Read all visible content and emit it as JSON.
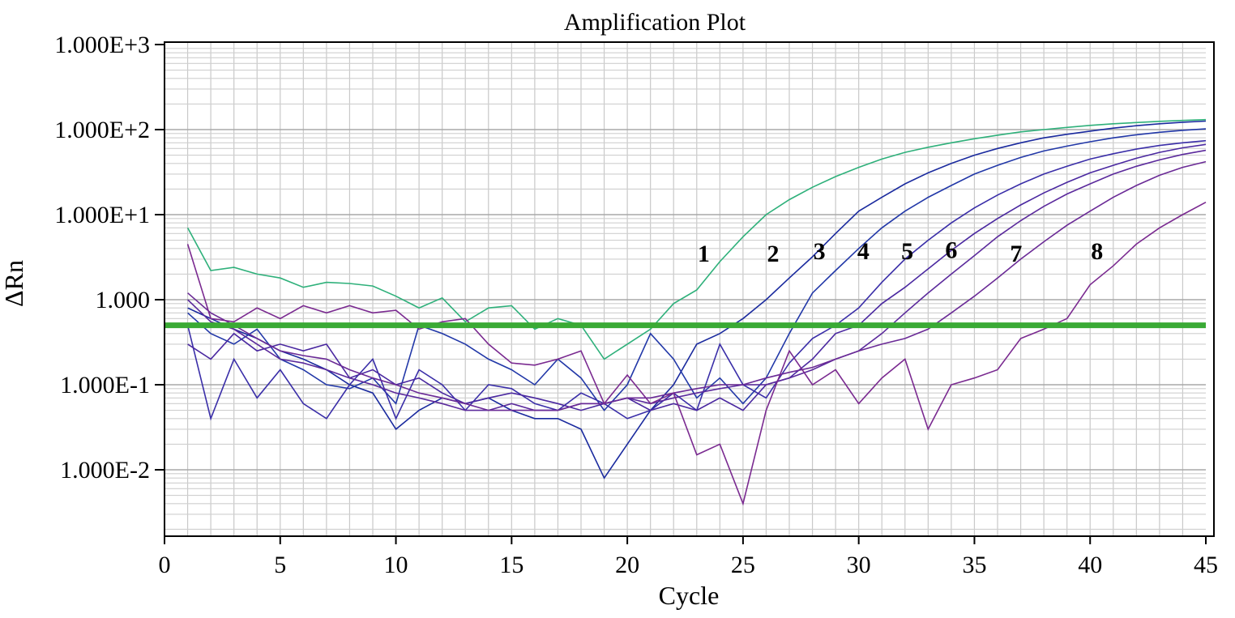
{
  "chart_data": {
    "type": "line",
    "title": "Amplification Plot",
    "xlabel": "Cycle",
    "ylabel": "ΔRn",
    "yscale": "log",
    "xlim": [
      0,
      45
    ],
    "ylim": [
      0.001,
      1000
    ],
    "grid": true,
    "legend": "none",
    "x_ticks": [
      0,
      5,
      10,
      15,
      20,
      25,
      30,
      35,
      40,
      45
    ],
    "x_tick_labels": [
      "0",
      "5",
      "10",
      "15",
      "20",
      "25",
      "30",
      "35",
      "40",
      "45"
    ],
    "y_ticks": [
      1000,
      100,
      10,
      1,
      0.1,
      0.01
    ],
    "y_tick_labels": [
      "1.000E+3",
      "1.000E+2",
      "1.000E+1",
      "1.000",
      "1.000E-1",
      "1.000E-2"
    ],
    "threshold": {
      "value": 0.5,
      "color": "#3aaa35"
    },
    "curve_labels": [
      {
        "text": "1",
        "x": 23.3,
        "y": 2.8
      },
      {
        "text": "2",
        "x": 26.3,
        "y": 2.8
      },
      {
        "text": "3",
        "x": 28.3,
        "y": 3.0
      },
      {
        "text": "4",
        "x": 30.2,
        "y": 3.0
      },
      {
        "text": "5",
        "x": 32.1,
        "y": 3.0
      },
      {
        "text": "6",
        "x": 34.0,
        "y": 3.1
      },
      {
        "text": "7",
        "x": 36.8,
        "y": 2.8
      },
      {
        "text": "8",
        "x": 40.3,
        "y": 3.0
      }
    ],
    "series": [
      {
        "color": "#2eb07a",
        "x": [
          1,
          2,
          3,
          4,
          5,
          6,
          7,
          8,
          9,
          10,
          11,
          12,
          13,
          14,
          15,
          16,
          17,
          18,
          19,
          20,
          21,
          22,
          23,
          24,
          25,
          26,
          27,
          28,
          29,
          30,
          31,
          32,
          33,
          34,
          35,
          36,
          37,
          38,
          39,
          40,
          41,
          42,
          43,
          44,
          45
        ],
        "y": [
          7,
          2.2,
          2.4,
          2,
          1.8,
          1.4,
          1.6,
          1.55,
          1.45,
          1.1,
          0.8,
          1.05,
          0.55,
          0.8,
          0.85,
          0.45,
          0.6,
          0.5,
          0.2,
          0.3,
          0.45,
          0.9,
          1.3,
          2.8,
          5.5,
          10,
          15,
          21,
          28,
          36,
          45,
          54,
          62,
          70,
          78,
          86,
          94,
          100,
          106,
          112,
          117,
          121,
          125,
          128,
          131
        ]
      },
      {
        "color": "#1a2a9e",
        "x": [
          1,
          2,
          3,
          4,
          5,
          6,
          7,
          8,
          9,
          10,
          11,
          12,
          13,
          14,
          15,
          16,
          17,
          18,
          19,
          20,
          21,
          22,
          23,
          24,
          25,
          26,
          27,
          28,
          29,
          30,
          31,
          32,
          33,
          34,
          35,
          36,
          37,
          38,
          39,
          40,
          41,
          42,
          43,
          44,
          45
        ],
        "y": [
          0.8,
          0.6,
          0.45,
          0.35,
          0.25,
          0.2,
          0.15,
          0.1,
          0.08,
          0.03,
          0.05,
          0.07,
          0.06,
          0.07,
          0.05,
          0.04,
          0.04,
          0.03,
          0.008,
          0.02,
          0.05,
          0.1,
          0.3,
          0.4,
          0.6,
          1,
          1.8,
          3.2,
          6,
          11,
          16,
          23,
          31,
          40,
          50,
          60,
          70,
          80,
          88,
          96,
          104,
          111,
          117,
          122,
          126
        ]
      },
      {
        "color": "#2238a8",
        "x": [
          1,
          2,
          3,
          4,
          5,
          6,
          7,
          8,
          9,
          10,
          11,
          12,
          13,
          14,
          15,
          16,
          17,
          18,
          19,
          20,
          21,
          22,
          23,
          24,
          25,
          26,
          27,
          28,
          29,
          30,
          31,
          32,
          33,
          34,
          35,
          36,
          37,
          38,
          39,
          40,
          41,
          42,
          43,
          44,
          45
        ],
        "y": [
          0.7,
          0.4,
          0.3,
          0.45,
          0.2,
          0.15,
          0.1,
          0.09,
          0.12,
          0.06,
          0.5,
          0.4,
          0.3,
          0.2,
          0.15,
          0.1,
          0.2,
          0.12,
          0.05,
          0.1,
          0.4,
          0.2,
          0.07,
          0.12,
          0.06,
          0.12,
          0.4,
          1.2,
          2.2,
          4,
          7,
          11,
          16,
          22,
          30,
          38,
          47,
          56,
          64,
          72,
          80,
          87,
          93,
          98,
          102
        ]
      },
      {
        "color": "#3a2ea8",
        "x": [
          1,
          2,
          3,
          4,
          5,
          6,
          7,
          8,
          9,
          10,
          11,
          12,
          13,
          14,
          15,
          16,
          17,
          18,
          19,
          20,
          21,
          22,
          23,
          24,
          25,
          26,
          27,
          28,
          29,
          30,
          31,
          32,
          33,
          34,
          35,
          36,
          37,
          38,
          39,
          40,
          41,
          42,
          43,
          44,
          45
        ],
        "y": [
          0.5,
          0.04,
          0.2,
          0.07,
          0.15,
          0.06,
          0.04,
          0.1,
          0.2,
          0.04,
          0.15,
          0.1,
          0.05,
          0.1,
          0.09,
          0.06,
          0.05,
          0.08,
          0.06,
          0.04,
          0.05,
          0.08,
          0.05,
          0.3,
          0.1,
          0.07,
          0.18,
          0.35,
          0.5,
          0.8,
          1.6,
          3,
          5,
          8,
          12,
          17,
          23,
          30,
          37,
          45,
          52,
          59,
          65,
          70,
          74
        ]
      },
      {
        "color": "#4a28a0",
        "x": [
          1,
          2,
          3,
          4,
          5,
          6,
          7,
          8,
          9,
          10,
          11,
          12,
          13,
          14,
          15,
          16,
          17,
          18,
          19,
          20,
          21,
          22,
          23,
          24,
          25,
          26,
          27,
          28,
          29,
          30,
          31,
          32,
          33,
          34,
          35,
          36,
          37,
          38,
          39,
          40,
          41,
          42,
          43,
          44,
          45
        ],
        "y": [
          0.3,
          0.2,
          0.4,
          0.25,
          0.3,
          0.25,
          0.3,
          0.12,
          0.15,
          0.1,
          0.12,
          0.08,
          0.06,
          0.07,
          0.08,
          0.07,
          0.06,
          0.05,
          0.06,
          0.07,
          0.05,
          0.06,
          0.05,
          0.07,
          0.05,
          0.1,
          0.12,
          0.2,
          0.4,
          0.5,
          0.9,
          1.4,
          2.3,
          3.8,
          6,
          9,
          13,
          18,
          24,
          31,
          38,
          46,
          54,
          61,
          67
        ]
      },
      {
        "color": "#5b2a9c",
        "x": [
          1,
          2,
          3,
          4,
          5,
          6,
          7,
          8,
          9,
          10,
          11,
          12,
          13,
          14,
          15,
          16,
          17,
          18,
          19,
          20,
          21,
          22,
          23,
          24,
          25,
          26,
          27,
          28,
          29,
          30,
          31,
          32,
          33,
          34,
          35,
          36,
          37,
          38,
          39,
          40,
          41,
          42,
          43,
          44,
          45
        ],
        "y": [
          1,
          0.55,
          0.45,
          0.3,
          0.2,
          0.18,
          0.15,
          0.12,
          0.1,
          0.08,
          0.07,
          0.06,
          0.05,
          0.05,
          0.06,
          0.05,
          0.05,
          0.06,
          0.06,
          0.07,
          0.06,
          0.07,
          0.08,
          0.09,
          0.1,
          0.1,
          0.12,
          0.15,
          0.2,
          0.25,
          0.4,
          0.7,
          1.2,
          2,
          3.3,
          5.5,
          8.5,
          12.5,
          17.5,
          23,
          30,
          37,
          44,
          51,
          57
        ]
      },
      {
        "color": "#6a2a96",
        "x": [
          1,
          2,
          3,
          4,
          5,
          6,
          7,
          8,
          9,
          10,
          11,
          12,
          13,
          14,
          15,
          16,
          17,
          18,
          19,
          20,
          21,
          22,
          23,
          24,
          25,
          26,
          27,
          28,
          29,
          30,
          31,
          32,
          33,
          34,
          35,
          36,
          37,
          38,
          39,
          40,
          41,
          42,
          43,
          44,
          45
        ],
        "y": [
          1.2,
          0.7,
          0.5,
          0.35,
          0.25,
          0.22,
          0.2,
          0.15,
          0.12,
          0.1,
          0.08,
          0.07,
          0.06,
          0.05,
          0.05,
          0.05,
          0.05,
          0.06,
          0.06,
          0.07,
          0.07,
          0.08,
          0.09,
          0.1,
          0.1,
          0.12,
          0.14,
          0.16,
          0.2,
          0.25,
          0.3,
          0.35,
          0.45,
          0.7,
          1.1,
          1.8,
          3,
          4.8,
          7.5,
          11,
          16,
          22,
          29,
          36,
          42
        ]
      },
      {
        "color": "#7a2a90",
        "x": [
          1,
          2,
          3,
          4,
          5,
          6,
          7,
          8,
          9,
          10,
          11,
          12,
          13,
          14,
          15,
          16,
          17,
          18,
          19,
          20,
          21,
          22,
          23,
          24,
          25,
          26,
          27,
          28,
          29,
          30,
          31,
          32,
          33,
          34,
          35,
          36,
          37,
          38,
          39,
          40,
          41,
          42,
          43,
          44,
          45
        ],
        "y": [
          4.5,
          0.6,
          0.55,
          0.8,
          0.6,
          0.85,
          0.7,
          0.85,
          0.7,
          0.75,
          0.45,
          0.55,
          0.6,
          0.3,
          0.18,
          0.17,
          0.2,
          0.25,
          0.06,
          0.13,
          0.06,
          0.08,
          0.015,
          0.02,
          0.004,
          0.05,
          0.25,
          0.1,
          0.15,
          0.06,
          0.12,
          0.2,
          0.03,
          0.1,
          0.12,
          0.15,
          0.35,
          0.45,
          0.6,
          1.5,
          2.5,
          4.5,
          7,
          10,
          14
        ]
      }
    ]
  }
}
